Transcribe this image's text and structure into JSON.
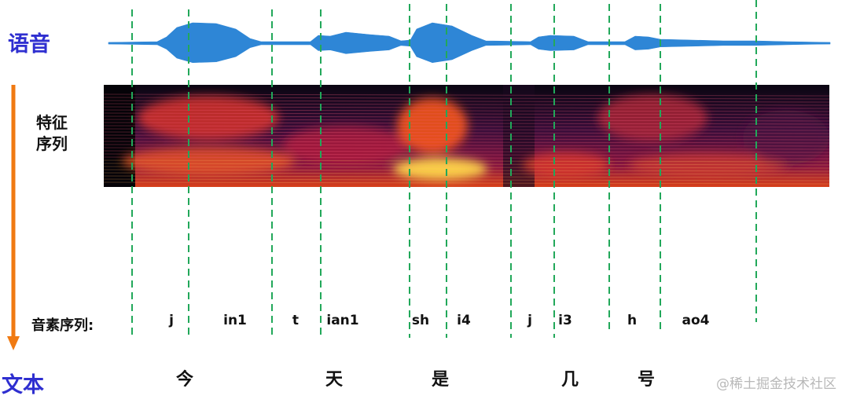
{
  "labels": {
    "speech": "语音",
    "features": [
      "特征",
      "序列"
    ],
    "phonemes": "音素序列:",
    "text": "文本"
  },
  "phonemes": [
    "j",
    "in1",
    "t",
    "ian1",
    "sh",
    "i4",
    "j",
    "i3",
    "h",
    "ao4"
  ],
  "characters": [
    "今",
    "天",
    "是",
    "几",
    "号"
  ],
  "watermark": "@稀土掘金技术社区",
  "colors": {
    "waveform": "#2e86d6",
    "label_blue": "#2f2fd0",
    "divider": "#22a85a",
    "arrow": "#f07a12"
  }
}
